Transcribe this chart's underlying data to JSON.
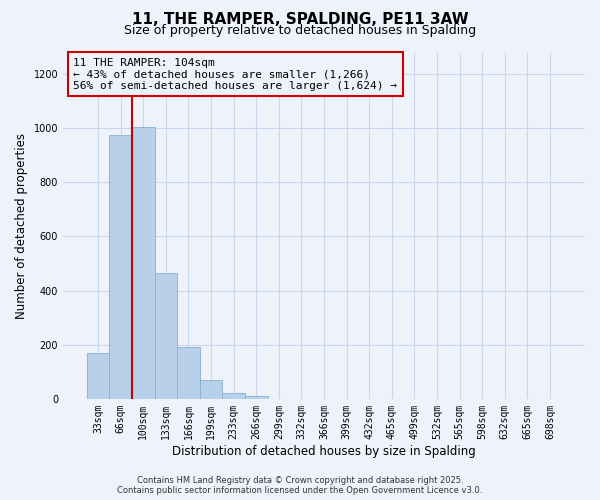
{
  "title": "11, THE RAMPER, SPALDING, PE11 3AW",
  "subtitle": "Size of property relative to detached houses in Spalding",
  "xlabel": "Distribution of detached houses by size in Spalding",
  "ylabel": "Number of detached properties",
  "bar_labels": [
    "33sqm",
    "66sqm",
    "100sqm",
    "133sqm",
    "166sqm",
    "199sqm",
    "233sqm",
    "266sqm",
    "299sqm",
    "332sqm",
    "366sqm",
    "399sqm",
    "432sqm",
    "465sqm",
    "499sqm",
    "532sqm",
    "565sqm",
    "598sqm",
    "632sqm",
    "665sqm",
    "698sqm"
  ],
  "bar_values": [
    170,
    975,
    1005,
    465,
    190,
    70,
    22,
    10,
    0,
    0,
    0,
    0,
    0,
    0,
    0,
    0,
    0,
    0,
    0,
    0,
    0
  ],
  "bar_color": "#b8d0ea",
  "bar_edge_color": "#89b0d0",
  "vline_index": 2,
  "vline_color": "#cc0000",
  "ylim": [
    0,
    1280
  ],
  "yticks": [
    0,
    200,
    400,
    600,
    800,
    1000,
    1200
  ],
  "annotation_title": "11 THE RAMPER: 104sqm",
  "annotation_line1": "← 43% of detached houses are smaller (1,266)",
  "annotation_line2": "56% of semi-detached houses are larger (1,624) →",
  "annotation_box_color": "#cc0000",
  "footer1": "Contains HM Land Registry data © Crown copyright and database right 2025.",
  "footer2": "Contains public sector information licensed under the Open Government Licence v3.0.",
  "background_color": "#eef2fb",
  "grid_color": "#cad5ee",
  "title_fontsize": 11,
  "subtitle_fontsize": 9,
  "axis_label_fontsize": 8.5,
  "tick_fontsize": 7,
  "annotation_fontsize": 8,
  "footer_fontsize": 6
}
